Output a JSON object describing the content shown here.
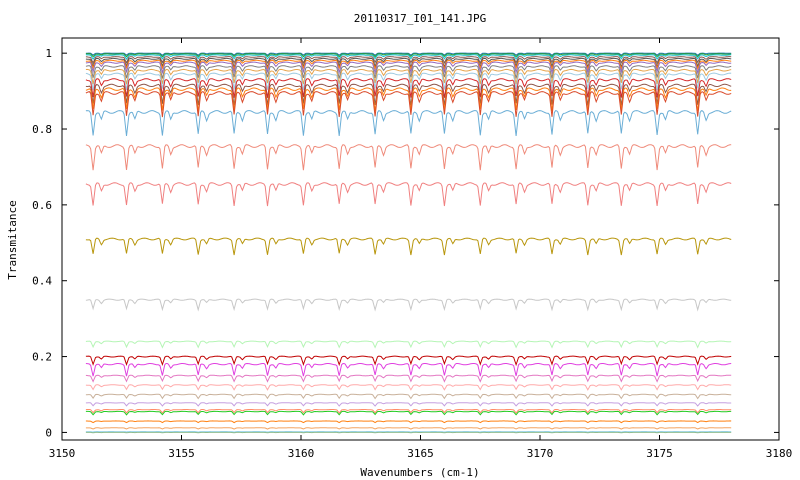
{
  "chart_data": {
    "type": "line",
    "title": "20110317_I01_141.JPG",
    "xlabel": "Wavenumbers (cm-1)",
    "ylabel": "Transmitance",
    "xlim": [
      3150,
      3180
    ],
    "ylim": [
      -0.02,
      1.04
    ],
    "x_ticks": [
      3150,
      3155,
      3160,
      3165,
      3170,
      3175,
      3180
    ],
    "y_ticks": [
      0,
      0.2,
      0.4,
      0.6,
      0.8,
      1
    ],
    "y_tick_labels": [
      "0",
      "0.2",
      "0.4",
      "0.6",
      "0.8",
      "1"
    ],
    "grid": false,
    "x_data_range": [
      3151,
      3178
    ],
    "absorption_lines_cm1": [
      3151.3,
      3152.7,
      3154.2,
      3155.7,
      3157.2,
      3158.6,
      3160.1,
      3161.6,
      3163.1,
      3164.6,
      3166.0,
      3167.5,
      3169.0,
      3170.5,
      3172.0,
      3173.4,
      3174.9,
      3176.6
    ],
    "series": [
      {
        "color": "#1f77b4",
        "baseline": 1.0,
        "line_depth": 0.005
      },
      {
        "color": "#2ca02c",
        "baseline": 0.998,
        "line_depth": 0.007
      },
      {
        "color": "#17becf",
        "baseline": 0.995,
        "line_depth": 0.01
      },
      {
        "color": "#8c564b",
        "baseline": 0.99,
        "line_depth": 0.015
      },
      {
        "color": "#555555",
        "baseline": 0.985,
        "line_depth": 0.02
      },
      {
        "color": "#ff7f0e",
        "baseline": 0.98,
        "line_depth": 0.02
      },
      {
        "color": "#9467bd",
        "baseline": 0.975,
        "line_depth": 0.025
      },
      {
        "color": "#7f7f7f",
        "baseline": 0.965,
        "line_depth": 0.03
      },
      {
        "color": "#e6a34a",
        "baseline": 0.955,
        "line_depth": 0.035
      },
      {
        "color": "#9ecae1",
        "baseline": 0.945,
        "line_depth": 0.04
      },
      {
        "color": "#d62728",
        "baseline": 0.93,
        "line_depth": 0.045
      },
      {
        "color": "#8c564b",
        "baseline": 0.915,
        "line_depth": 0.05
      },
      {
        "color": "#ff7f0e",
        "baseline": 0.905,
        "line_depth": 0.055
      },
      {
        "color": "#d94a2b",
        "baseline": 0.895,
        "line_depth": 0.06
      },
      {
        "color": "#6baed6",
        "baseline": 0.845,
        "line_depth": 0.06
      },
      {
        "color": "#ef8a7a",
        "baseline": 0.755,
        "line_depth": 0.06
      },
      {
        "color": "#f08080",
        "baseline": 0.655,
        "line_depth": 0.055
      },
      {
        "color": "#b8960c",
        "baseline": 0.51,
        "line_depth": 0.04
      },
      {
        "color": "#c7c7c7",
        "baseline": 0.35,
        "line_depth": 0.025
      },
      {
        "color": "#b5f5b5",
        "baseline": 0.24,
        "line_depth": 0.015
      },
      {
        "color": "#c00000",
        "baseline": 0.2,
        "line_depth": 0.02
      },
      {
        "color": "#e040e0",
        "baseline": 0.18,
        "line_depth": 0.03
      },
      {
        "color": "#e377c2",
        "baseline": 0.15,
        "line_depth": 0.015
      },
      {
        "color": "#ffaaaa",
        "baseline": 0.125,
        "line_depth": 0.012
      },
      {
        "color": "#c9b19b",
        "baseline": 0.1,
        "line_depth": 0.01
      },
      {
        "color": "#c5a0e0",
        "baseline": 0.078,
        "line_depth": 0.008
      },
      {
        "color": "#ff8c69",
        "baseline": 0.06,
        "line_depth": 0.008
      },
      {
        "color": "#22cc22",
        "baseline": 0.055,
        "line_depth": 0.008
      },
      {
        "color": "#ff7f0e",
        "baseline": 0.03,
        "line_depth": 0.004
      },
      {
        "color": "#f4a460",
        "baseline": 0.012,
        "line_depth": 0.003
      },
      {
        "color": "#87ceeb",
        "baseline": 0.002,
        "line_depth": 0.001
      },
      {
        "color": "#8fbc8f",
        "baseline": 0.0,
        "line_depth": 0.001
      }
    ]
  }
}
